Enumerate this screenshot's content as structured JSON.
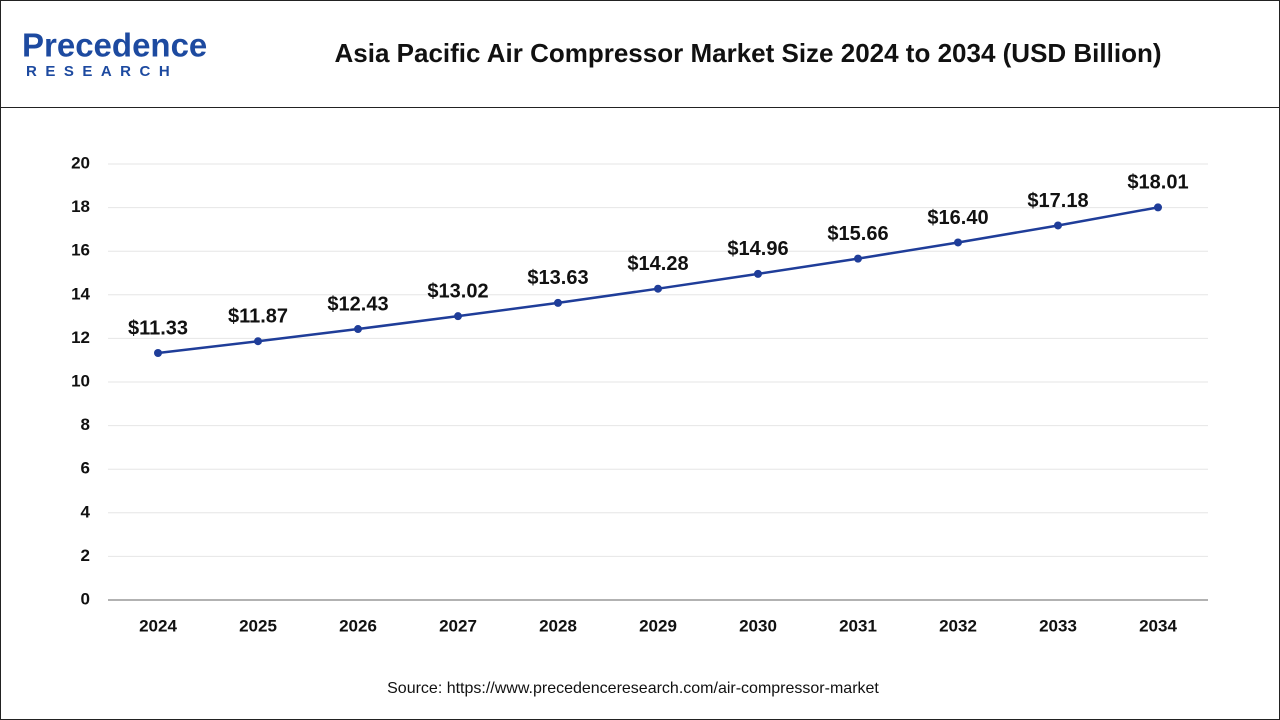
{
  "logo": {
    "name": "Precedence",
    "tagline": "RESEARCH"
  },
  "chart_data": {
    "type": "line",
    "title": "Asia Pacific Air Compressor Market Size 2024 to 2034 (USD Billion)",
    "categories": [
      "2024",
      "2025",
      "2026",
      "2027",
      "2028",
      "2029",
      "2030",
      "2031",
      "2032",
      "2033",
      "2034"
    ],
    "values": [
      11.33,
      11.87,
      12.43,
      13.02,
      13.63,
      14.28,
      14.96,
      15.66,
      16.4,
      17.18,
      18.01
    ],
    "value_labels": [
      "$11.33",
      "$11.87",
      "$12.43",
      "$13.02",
      "$13.63",
      "$14.28",
      "$14.96",
      "$15.66",
      "$16.40",
      "$17.18",
      "$18.01"
    ],
    "color": "#1f3d99",
    "ylim": [
      0,
      20
    ],
    "yticks": [
      0,
      2,
      4,
      6,
      8,
      10,
      12,
      14,
      16,
      18,
      20
    ],
    "grid": true,
    "source": "Source: https://www.precedenceresearch.com/air-compressor-market"
  }
}
